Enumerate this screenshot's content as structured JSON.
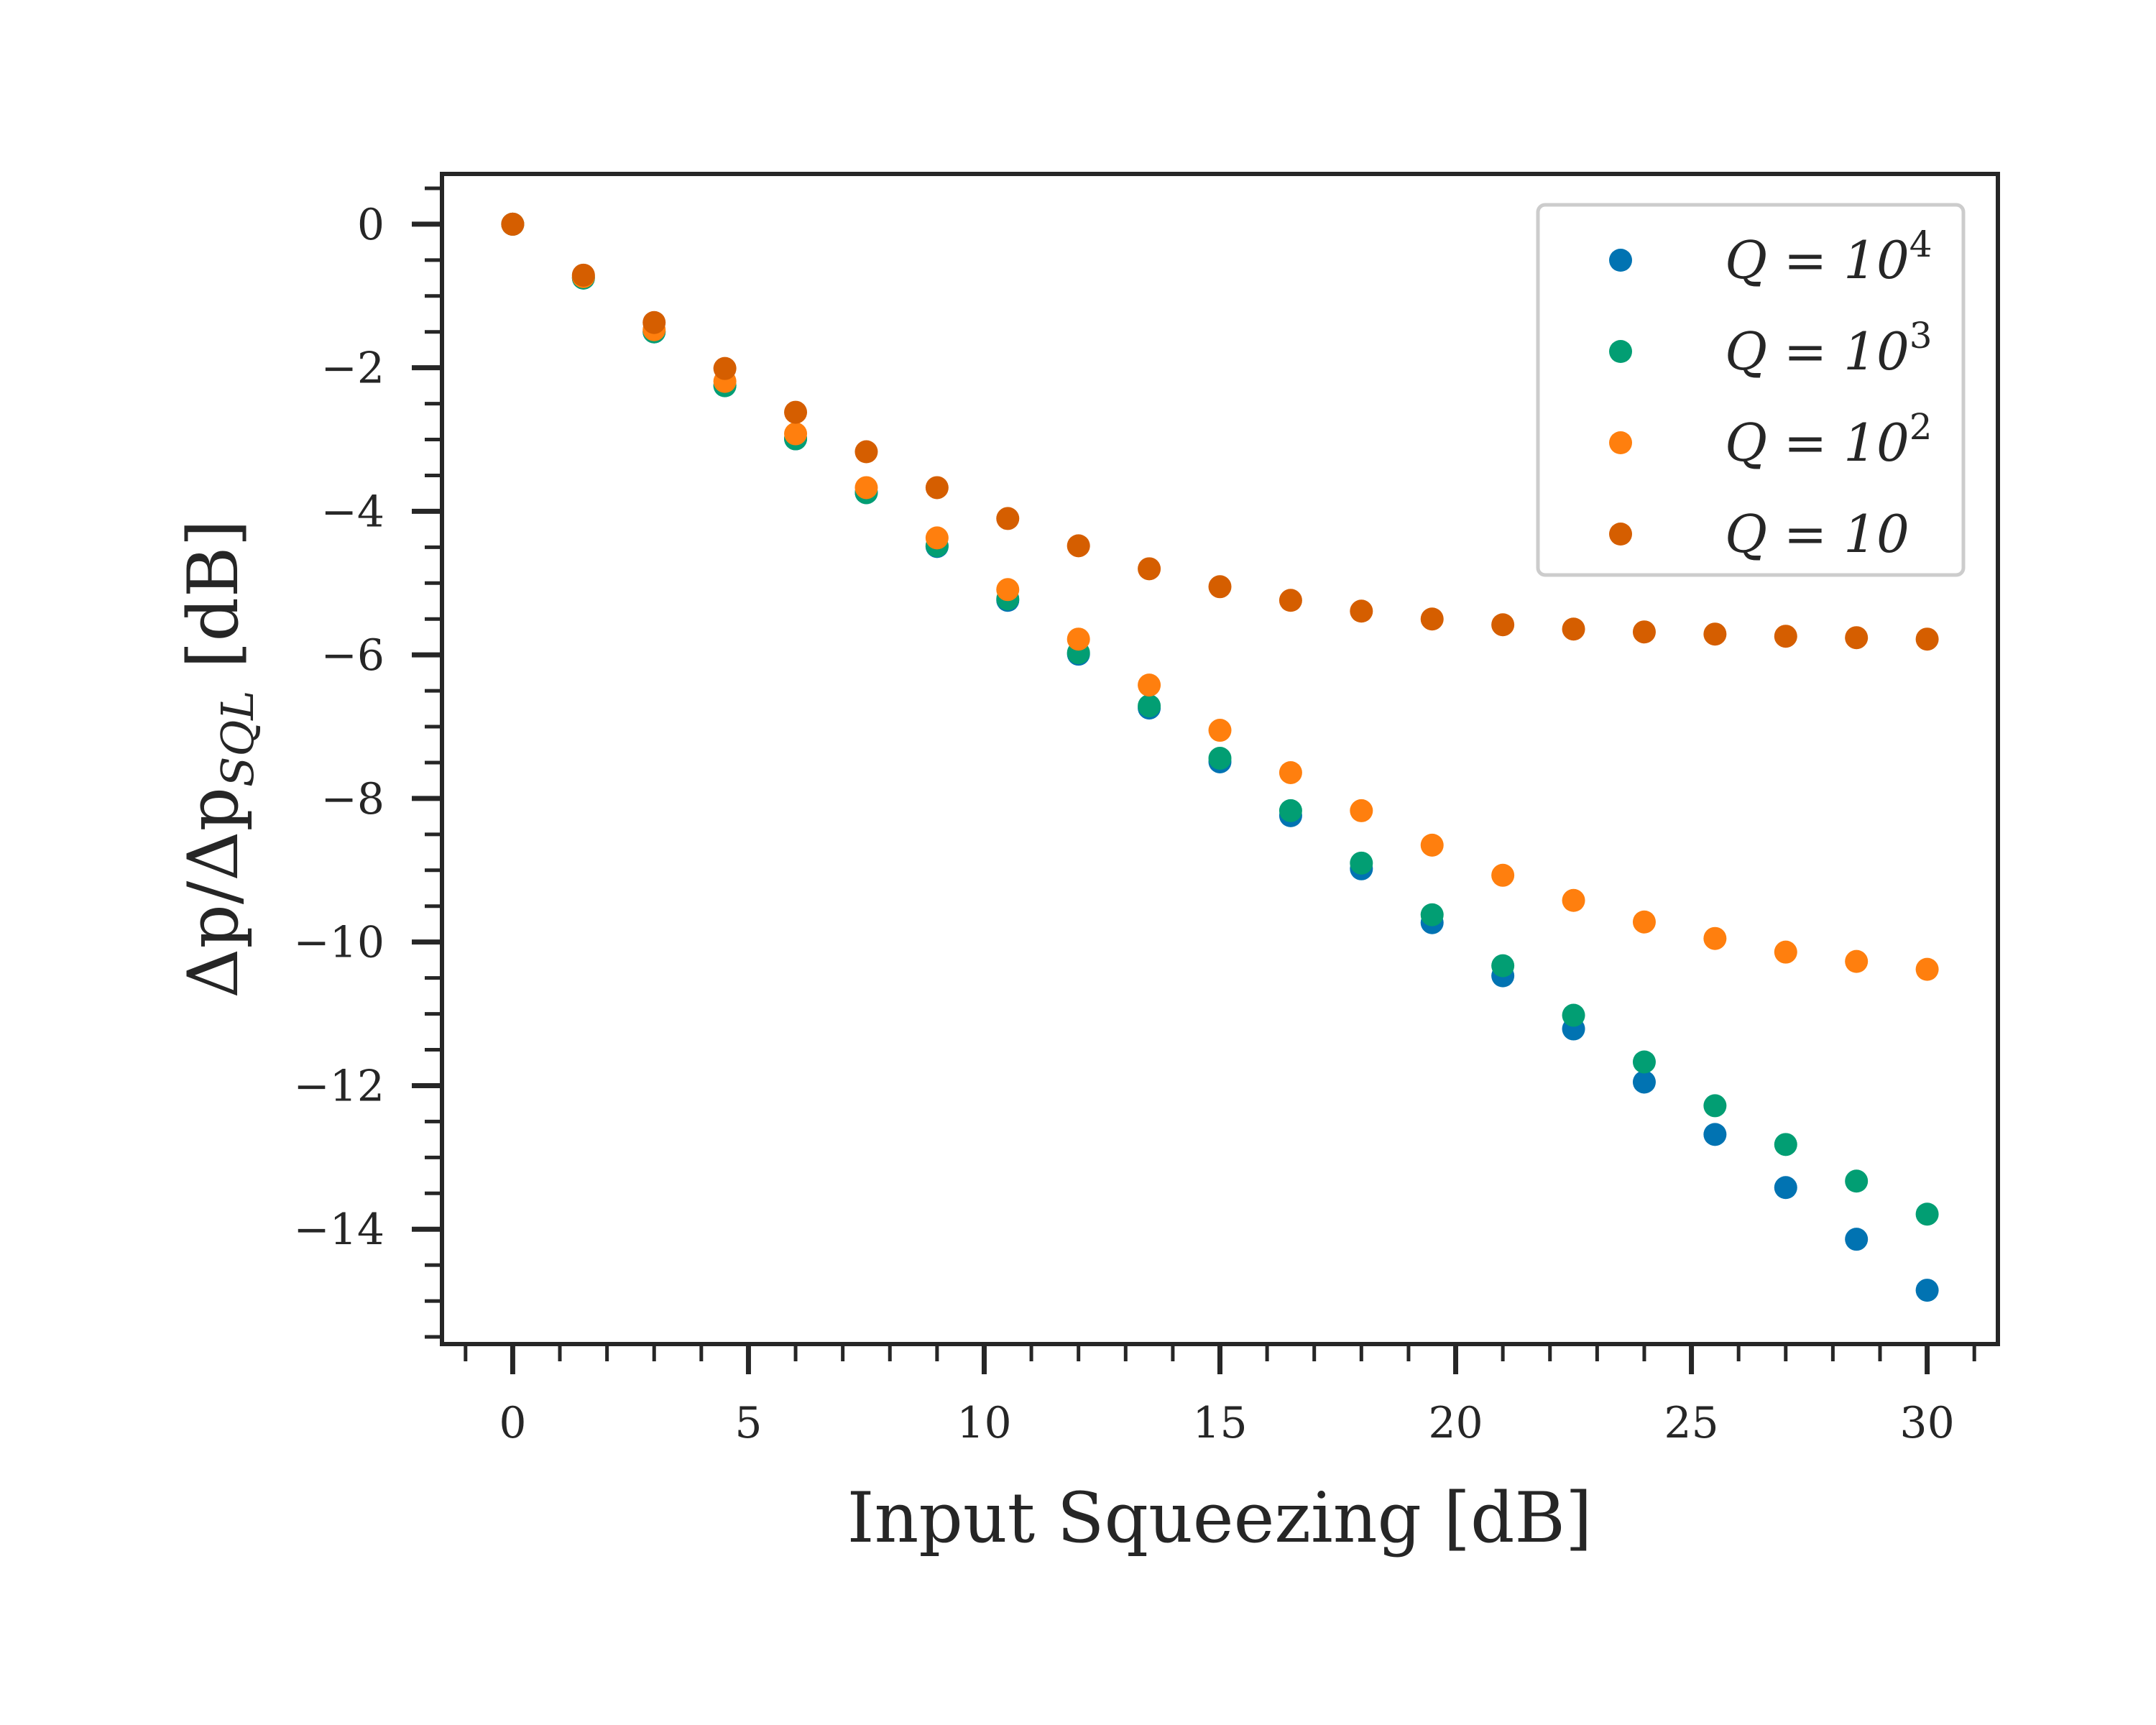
{
  "chart_data": {
    "type": "scatter",
    "xlabel": "Input Squeezing [dB]",
    "ylabel": "Δp/Δp",
    "ylabel_subscript": "SQL",
    "xlim": [
      -1.5,
      31.5
    ],
    "ylim": [
      -15.6,
      0.7
    ],
    "x_ticks": [
      0,
      5,
      10,
      15,
      20,
      25,
      30
    ],
    "x_tick_labels": [
      "0",
      "5",
      "10",
      "15",
      "20",
      "25",
      "30"
    ],
    "y_ticks": [
      0,
      -2,
      -4,
      -6,
      -8,
      -10,
      -12,
      -14
    ],
    "y_tick_labels": [
      "0",
      "−2",
      "−4",
      "−6",
      "−8",
      "−10",
      "−12",
      "−14"
    ],
    "grid": false,
    "legend_position": "top-right",
    "x": [
      0,
      1.5,
      3,
      4.5,
      6,
      7.5,
      9,
      10.5,
      12,
      13.5,
      15,
      16.5,
      18,
      19.5,
      21,
      22.5,
      24,
      25.5,
      27,
      28.5,
      30
    ],
    "series": [
      {
        "name": "Q = 10",
        "name_base": "Q = 10",
        "name_exponent": "4",
        "color": "#0173b2",
        "values": [
          0,
          -0.75,
          -1.5,
          -2.25,
          -2.99,
          -3.74,
          -4.49,
          -5.24,
          -5.99,
          -6.74,
          -7.49,
          -8.24,
          -8.98,
          -9.73,
          -10.47,
          -11.21,
          -11.95,
          -12.68,
          -13.42,
          -14.14,
          -14.85
        ]
      },
      {
        "name": "Q = 10",
        "name_base": "Q = 10",
        "name_exponent": "3",
        "color": "#029e73",
        "values": [
          0,
          -0.75,
          -1.5,
          -2.25,
          -2.99,
          -3.74,
          -4.48,
          -5.22,
          -5.97,
          -6.71,
          -7.44,
          -8.17,
          -8.9,
          -9.62,
          -10.33,
          -11.02,
          -11.67,
          -12.28,
          -12.82,
          -13.33,
          -13.79
        ]
      },
      {
        "name": "Q = 10",
        "name_base": "Q = 10",
        "name_exponent": "2",
        "color": "#ff7f0e",
        "values": [
          0,
          -0.73,
          -1.47,
          -2.19,
          -2.92,
          -3.67,
          -4.37,
          -5.09,
          -5.78,
          -6.42,
          -7.05,
          -7.64,
          -8.17,
          -8.65,
          -9.07,
          -9.42,
          -9.72,
          -9.95,
          -10.14,
          -10.27,
          -10.38
        ]
      },
      {
        "name": "Q = 10",
        "name_base": "Q = 10",
        "name_exponent": "",
        "color": "#d55e00",
        "values": [
          0,
          -0.71,
          -1.37,
          -2.01,
          -2.62,
          -3.17,
          -3.67,
          -4.1,
          -4.48,
          -4.8,
          -5.05,
          -5.24,
          -5.39,
          -5.5,
          -5.58,
          -5.64,
          -5.68,
          -5.71,
          -5.74,
          -5.76,
          -5.78
        ]
      }
    ]
  }
}
